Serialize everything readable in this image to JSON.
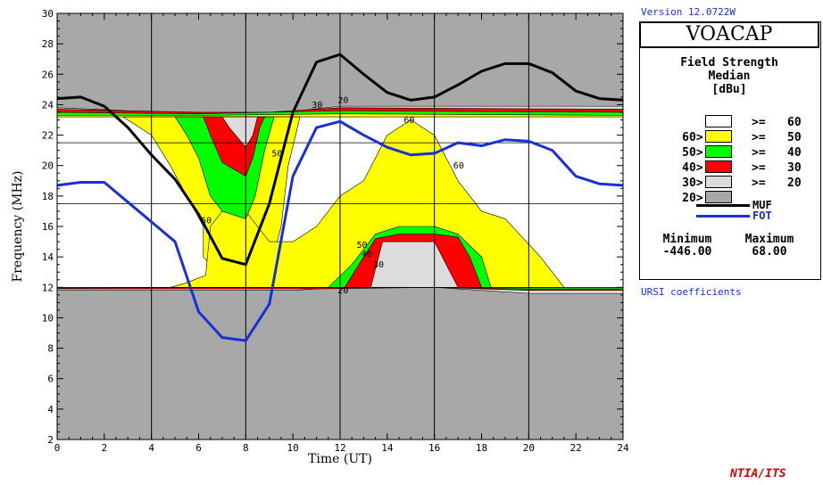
{
  "header": {
    "version": "Version 12.0722W"
  },
  "legend": {
    "app_title": "VOACAP",
    "title_lines": [
      "Field Strength",
      "Median",
      "[dBu]"
    ],
    "rows": [
      {
        "prefix": "",
        "ge": ">=",
        "value": "60",
        "color": "#ffffff"
      },
      {
        "prefix": "60>",
        "ge": ">=",
        "value": "50",
        "color": "#ffff00"
      },
      {
        "prefix": "50>",
        "ge": ">=",
        "value": "40",
        "color": "#00ff00"
      },
      {
        "prefix": "40>",
        "ge": ">=",
        "value": "30",
        "color": "#ff0000"
      },
      {
        "prefix": "30>",
        "ge": ">=",
        "value": "20",
        "color": "#dcdcdc"
      },
      {
        "prefix": "20>",
        "ge": "",
        "value": "",
        "color": "#a8a8a8"
      }
    ],
    "lines": [
      {
        "label": "MUF",
        "color": "#000000"
      },
      {
        "label": "FOT",
        "color": "#1a2fd6"
      }
    ],
    "minimum_label": "Minimum",
    "maximum_label": "Maximum",
    "minimum_value": "-446.00",
    "maximum_value": "68.00"
  },
  "footer": {
    "ursi": "URSI coefficients",
    "org": "NTIA/ITS"
  },
  "chart_data": {
    "type": "heatmap",
    "xlabel": "Time (UT)",
    "ylabel": "Frequency (MHz)",
    "xlim": [
      0,
      24
    ],
    "ylim": [
      2,
      30
    ],
    "xticks": [
      0,
      2,
      4,
      6,
      8,
      10,
      12,
      14,
      16,
      18,
      20,
      22,
      24
    ],
    "yticks": [
      2,
      4,
      6,
      8,
      10,
      12,
      14,
      16,
      18,
      20,
      22,
      24,
      26,
      28,
      30
    ],
    "vertical_guides": [
      4,
      8,
      12,
      16,
      20
    ],
    "horizontal_guides": [
      17.5,
      21.5
    ],
    "background_color": "#a8a8a8",
    "regions": [
      {
        "level": ">=20",
        "color": "#dcdcdc",
        "points": [
          [
            0,
            11.8
          ],
          [
            10,
            11.8
          ],
          [
            12,
            12
          ],
          [
            16,
            12
          ],
          [
            20,
            11.6
          ],
          [
            24,
            11.6
          ],
          [
            24,
            23.9
          ],
          [
            16,
            23.9
          ],
          [
            12,
            23.9
          ],
          [
            9,
            23.4
          ],
          [
            8,
            23
          ],
          [
            6,
            23.4
          ],
          [
            0,
            23.8
          ]
        ]
      },
      {
        "level": ">=30",
        "color": "#ff0000",
        "points": [
          [
            0,
            11.9
          ],
          [
            11,
            11.9
          ],
          [
            16,
            12
          ],
          [
            20,
            11.8
          ],
          [
            24,
            11.8
          ],
          [
            24,
            23.7
          ],
          [
            12,
            23.8
          ],
          [
            9,
            23.5
          ],
          [
            6,
            23.5
          ],
          [
            0,
            23.7
          ]
        ]
      },
      {
        "level": ">=40",
        "color": "#00ff00",
        "points": [
          [
            0,
            11.95
          ],
          [
            11,
            12
          ],
          [
            16,
            12
          ],
          [
            20,
            11.9
          ],
          [
            24,
            11.9
          ],
          [
            24,
            23.5
          ],
          [
            12,
            23.6
          ],
          [
            9,
            23.5
          ],
          [
            6,
            23.4
          ],
          [
            0,
            23.5
          ]
        ]
      },
      {
        "level": ">=50",
        "color": "#ffff00",
        "points": [
          [
            0,
            12
          ],
          [
            24,
            12
          ],
          [
            24,
            23.3
          ],
          [
            12,
            23.4
          ],
          [
            6,
            23.3
          ],
          [
            0,
            23.3
          ]
        ]
      },
      {
        "level": ">=60",
        "color": "#ffffff",
        "points": [
          [
            0,
            12
          ],
          [
            24,
            12
          ],
          [
            24,
            23.2
          ],
          [
            0,
            23.2
          ]
        ]
      },
      {
        "level": ">=50",
        "color": "#ffff00",
        "points": [
          [
            2.8,
            23.2
          ],
          [
            4,
            22
          ],
          [
            4.8,
            20
          ],
          [
            5.5,
            18
          ],
          [
            6.2,
            16
          ],
          [
            6.2,
            14
          ],
          [
            6.8,
            13
          ],
          [
            8,
            13
          ],
          [
            9,
            13
          ],
          [
            9.5,
            16
          ],
          [
            9.8,
            20
          ],
          [
            10.3,
            23.2
          ]
        ]
      },
      {
        "level": ">=50",
        "color": "#ffff00",
        "points": [
          [
            4.8,
            12
          ],
          [
            5.5,
            12.3
          ],
          [
            6.3,
            12.8
          ],
          [
            6.5,
            16
          ],
          [
            7,
            17
          ],
          [
            8,
            17
          ],
          [
            9,
            15
          ],
          [
            10,
            15
          ],
          [
            11,
            16
          ],
          [
            12,
            18
          ],
          [
            13,
            19
          ],
          [
            14,
            22
          ],
          [
            15,
            23
          ],
          [
            16,
            22
          ],
          [
            17,
            19
          ],
          [
            18,
            17
          ],
          [
            19,
            16.5
          ],
          [
            20.5,
            14
          ],
          [
            21.5,
            12
          ]
        ]
      },
      {
        "level": ">=40",
        "color": "#00ff00",
        "points": [
          [
            5,
            23.2
          ],
          [
            5.5,
            22
          ],
          [
            6,
            20.5
          ],
          [
            6.5,
            18
          ],
          [
            7,
            17
          ],
          [
            8,
            16.5
          ],
          [
            8.4,
            18
          ],
          [
            8.8,
            21
          ],
          [
            9.2,
            23.2
          ]
        ]
      },
      {
        "level": ">=30",
        "color": "#ff0000",
        "points": [
          [
            6.2,
            23.2
          ],
          [
            6.5,
            22
          ],
          [
            7,
            20.2
          ],
          [
            8,
            19.3
          ],
          [
            8.3,
            20.5
          ],
          [
            8.6,
            22.5
          ],
          [
            8.8,
            23.2
          ]
        ]
      },
      {
        "level": ">=20",
        "color": "#dcdcdc",
        "points": [
          [
            7,
            23.2
          ],
          [
            7.3,
            22.5
          ],
          [
            8,
            21.2
          ],
          [
            8.3,
            22
          ],
          [
            8.5,
            23.2
          ]
        ]
      },
      {
        "level": ">=40",
        "color": "#00ff00",
        "points": [
          [
            11.5,
            12
          ],
          [
            12.5,
            13.5
          ],
          [
            13,
            14.5
          ],
          [
            13.5,
            15.5
          ],
          [
            14.5,
            16
          ],
          [
            16,
            16
          ],
          [
            17,
            15.5
          ],
          [
            18,
            14
          ],
          [
            18.4,
            12
          ]
        ]
      },
      {
        "level": ">=30",
        "color": "#ff0000",
        "points": [
          [
            12.2,
            12
          ],
          [
            12.8,
            13.5
          ],
          [
            13.5,
            15.2
          ],
          [
            14.5,
            15.5
          ],
          [
            16,
            15.5
          ],
          [
            17,
            15.3
          ],
          [
            17.5,
            14
          ],
          [
            18,
            12
          ]
        ]
      },
      {
        "level": ">=20",
        "color": "#dcdcdc",
        "points": [
          [
            13.3,
            12
          ],
          [
            13.8,
            15
          ],
          [
            14.5,
            15
          ],
          [
            16,
            15
          ],
          [
            16.5,
            13.5
          ],
          [
            17,
            12
          ]
        ]
      }
    ],
    "contour_labels": [
      {
        "x": 6.1,
        "y": 16.2,
        "text": "60"
      },
      {
        "x": 9.1,
        "y": 20.6,
        "text": "50"
      },
      {
        "x": 10.8,
        "y": 23.8,
        "text": "30"
      },
      {
        "x": 11.9,
        "y": 24.1,
        "text": "20"
      },
      {
        "x": 14.7,
        "y": 22.8,
        "text": "60"
      },
      {
        "x": 16.8,
        "y": 19.8,
        "text": "60"
      },
      {
        "x": 12.7,
        "y": 14.6,
        "text": "50"
      },
      {
        "x": 12.9,
        "y": 14.0,
        "text": "40"
      },
      {
        "x": 13.4,
        "y": 13.3,
        "text": "30"
      },
      {
        "x": 11.9,
        "y": 11.6,
        "text": "20"
      }
    ],
    "series": [
      {
        "name": "MUF",
        "color": "#000000",
        "x": [
          0,
          1,
          2,
          3,
          4,
          5,
          6,
          7,
          8,
          9,
          10,
          11,
          12,
          13,
          14,
          15,
          16,
          17,
          18,
          19,
          20,
          21,
          22,
          23,
          24
        ],
        "values": [
          24.4,
          24.5,
          23.9,
          22.5,
          20.7,
          19.1,
          16.8,
          13.9,
          13.5,
          17.5,
          23.5,
          26.8,
          27.3,
          26.0,
          24.8,
          24.3,
          24.5,
          25.3,
          26.2,
          26.7,
          26.7,
          26.1,
          24.9,
          24.4,
          24.3
        ]
      },
      {
        "name": "FOT",
        "color": "#1a2fd6",
        "x": [
          0,
          1,
          2,
          3,
          4,
          5,
          6,
          7,
          8,
          9,
          10,
          11,
          12,
          13,
          14,
          15,
          16,
          17,
          18,
          19,
          20,
          21,
          22,
          23,
          24
        ],
        "values": [
          18.7,
          18.9,
          18.9,
          17.6,
          16.3,
          15.0,
          10.4,
          8.7,
          8.5,
          10.9,
          19.3,
          22.5,
          22.9,
          22.0,
          21.2,
          20.7,
          20.8,
          21.5,
          21.3,
          21.7,
          21.6,
          21.0,
          19.3,
          18.8,
          18.7
        ]
      }
    ]
  }
}
